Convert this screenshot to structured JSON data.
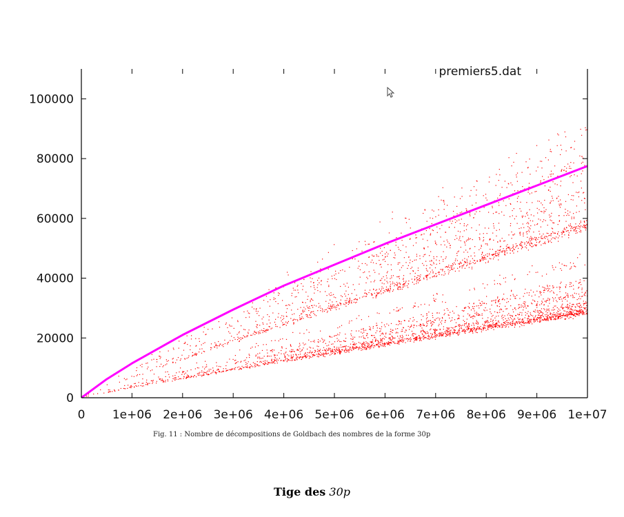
{
  "chart_data": {
    "type": "scatter",
    "title": "",
    "xlabel": "",
    "ylabel": "",
    "xlim": [
      0,
      10000000
    ],
    "ylim": [
      0,
      110000
    ],
    "x_ticks": [
      0,
      1000000,
      2000000,
      3000000,
      4000000,
      5000000,
      6000000,
      7000000,
      8000000,
      9000000,
      10000000
    ],
    "x_tick_labels": [
      "0",
      "1e+06",
      "2e+06",
      "3e+06",
      "4e+06",
      "5e+06",
      "6e+06",
      "7e+06",
      "8e+06",
      "9e+06",
      "1e+07"
    ],
    "y_ticks": [
      0,
      20000,
      40000,
      60000,
      80000,
      100000
    ],
    "y_tick_labels": [
      "0",
      "20000",
      "40000",
      "60000",
      "80000",
      "100000"
    ],
    "grid": false,
    "legend_position": "top-right",
    "series": [
      {
        "name": "premiers5.dat",
        "kind": "scatter",
        "color": "#ff0000",
        "bands": [
          {
            "y_at_xmax": 29000,
            "spread": 0.05,
            "weight": 1.5
          },
          {
            "y_at_xmax": 31500,
            "spread": 0.04,
            "weight": 0.6
          },
          {
            "y_at_xmax": 35000,
            "spread": 0.05,
            "weight": 0.5
          },
          {
            "y_at_xmax": 39000,
            "spread": 0.05,
            "weight": 0.4
          },
          {
            "y_at_xmax": 46000,
            "spread": 0.06,
            "weight": 0.15
          },
          {
            "y_at_xmax": 58000,
            "spread": 0.04,
            "weight": 1.0
          },
          {
            "y_at_xmax": 63500,
            "spread": 0.05,
            "weight": 0.35
          },
          {
            "y_at_xmax": 69000,
            "spread": 0.06,
            "weight": 0.3
          },
          {
            "y_at_xmax": 78000,
            "spread": 0.07,
            "weight": 0.45
          },
          {
            "y_at_xmax": 88000,
            "spread": 0.09,
            "weight": 0.2
          }
        ]
      },
      {
        "name": "",
        "kind": "line",
        "color": "#ff00ff",
        "x": [
          0,
          500000,
          1000000,
          2000000,
          3000000,
          4000000,
          5000000,
          6000000,
          7000000,
          8000000,
          9000000,
          10000000
        ],
        "y": [
          0,
          6200,
          11500,
          21000,
          29500,
          37500,
          44500,
          51500,
          58000,
          64500,
          71000,
          77500
        ]
      }
    ]
  },
  "caption": "Fig. 11 : Nombre de décompositions de Goldbach des nombres de la forme 30p",
  "section_title": {
    "bold": "Tige des",
    "math": "30p"
  }
}
